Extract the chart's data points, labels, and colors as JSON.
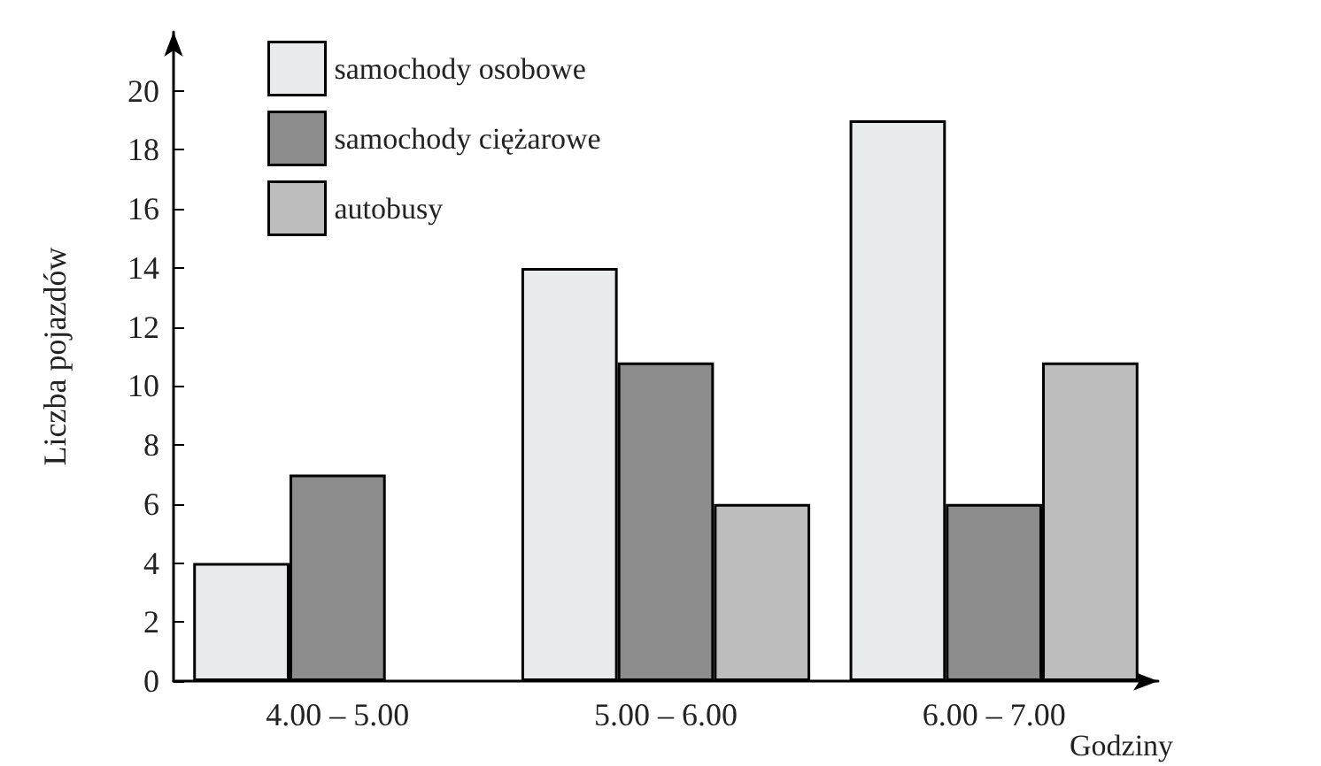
{
  "chart_data": {
    "type": "bar",
    "xlabel": "Godziny",
    "ylabel": "Liczba pojazdów",
    "categories": [
      "4.00 – 5.00",
      "5.00 – 6.00",
      "6.00 – 7.00"
    ],
    "series": [
      {
        "name": "samochody osobowe",
        "color": "#e8ebee",
        "values": [
          4,
          14,
          19
        ]
      },
      {
        "name": "samochody ciężarowe",
        "color": "#8c8c8c",
        "values": [
          7,
          10.8,
          6
        ]
      },
      {
        "name": "autobusy",
        "color": "#bdbdbd",
        "values": [
          null,
          6,
          10.8
        ]
      }
    ],
    "ylim": [
      0,
      22
    ],
    "yticks": [
      0,
      2,
      4,
      6,
      8,
      10,
      12,
      14,
      16,
      18,
      20
    ],
    "grid": false,
    "legend": "top left"
  }
}
